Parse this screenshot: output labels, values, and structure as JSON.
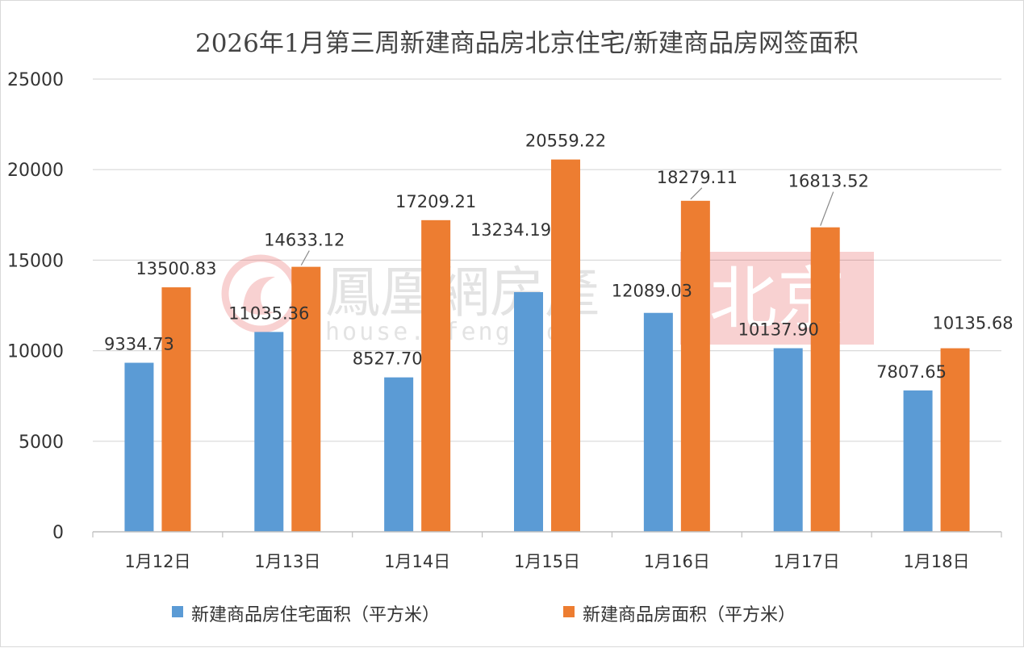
{
  "chart_data": {
    "type": "bar",
    "title": "2026年1月第三周新建商品房北京住宅/新建商品房网签面积",
    "categories": [
      "1月12日",
      "1月13日",
      "1月14日",
      "1月15日",
      "1月16日",
      "1月17日",
      "1月18日"
    ],
    "series": [
      {
        "name": "新建商品房住宅面积（平方米）",
        "color": "#5b9bd5",
        "values": [
          9334.73,
          11035.36,
          8527.7,
          13234.19,
          12089.03,
          10137.9,
          7807.65
        ],
        "labels": [
          "9334.73",
          "11035.36",
          "8527.70",
          "13234.19",
          "12089.03",
          "10137.90",
          "7807.65"
        ]
      },
      {
        "name": "新建商品房面积（平方米）",
        "color": "#ed7d31",
        "values": [
          13500.83,
          14633.12,
          17209.21,
          20559.22,
          18279.11,
          16813.52,
          10135.68
        ],
        "labels": [
          "13500.83",
          "14633.12",
          "17209.21",
          "20559.22",
          "18279.11",
          "16813.52",
          "10135.68"
        ]
      }
    ],
    "yticks": [
      "0",
      "5000",
      "10000",
      "15000",
      "20000",
      "25000"
    ],
    "ylim": [
      0,
      25000
    ],
    "xlabel": "",
    "ylabel": "",
    "grid": true,
    "legend": "bottom"
  },
  "watermark": {
    "brand": "鳳凰網房產",
    "city": "北京",
    "url": "house.ifeng.com"
  }
}
